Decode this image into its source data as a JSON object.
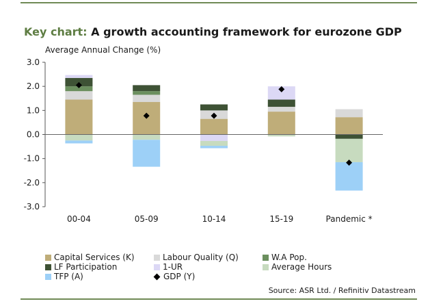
{
  "header": {
    "key": "Key chart:",
    "title": " A growth accounting framework for eurozone GDP"
  },
  "source": "Source: ASR Ltd. / Refinitiv Datastream",
  "chart_data": {
    "type": "bar",
    "stacked": true,
    "title": "Key chart: A growth accounting framework for eurozone GDP",
    "ylabel": "Average Annual Change (%)",
    "ylim": [
      -3.0,
      3.0
    ],
    "yticks": [
      "3.0",
      "2.0",
      "1.0",
      "0.0",
      "-1.0",
      "-2.0",
      "-3.0"
    ],
    "ytick_values": [
      3,
      2,
      1,
      0,
      -1,
      -2,
      -3
    ],
    "categories": [
      "00-04",
      "05-09",
      "10-14",
      "15-19",
      "Pandemic *"
    ],
    "series": [
      {
        "name": "Capital Services (K)",
        "color": "#bfad79",
        "values": [
          1.45,
          1.35,
          0.65,
          0.95,
          0.72
        ]
      },
      {
        "name": "Labour Quality (Q)",
        "color": "#d9d9d9",
        "values": [
          0.35,
          0.3,
          0.35,
          0.2,
          0.33
        ]
      },
      {
        "name": "W.A Pop.",
        "color": "#6b8f5e",
        "values": [
          0.2,
          0.15,
          0.0,
          0.0,
          0.0
        ]
      },
      {
        "name": "LF Participation",
        "color": "#3e5235",
        "values": [
          0.35,
          0.25,
          0.25,
          0.3,
          -0.18
        ]
      },
      {
        "name": "1-UR",
        "color": "#dcd8f5",
        "values": [
          0.12,
          0.0,
          -0.27,
          0.55,
          0.0
        ]
      },
      {
        "name": "Average Hours",
        "color": "#c7dbbf",
        "values": [
          -0.25,
          -0.22,
          -0.2,
          -0.08,
          -0.97
        ]
      },
      {
        "name": "TFP (A)",
        "color": "#9dd0f7",
        "values": [
          -0.12,
          -1.12,
          -0.1,
          0.0,
          -1.18
        ]
      }
    ],
    "gdp": {
      "name": "GDP (Y)",
      "values": [
        2.05,
        0.78,
        0.78,
        1.88,
        -1.17
      ]
    },
    "legend_position": "bottom"
  }
}
